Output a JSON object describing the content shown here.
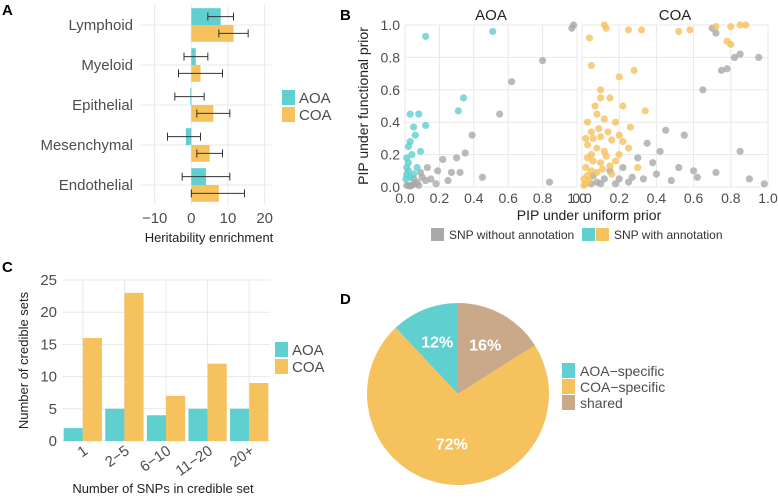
{
  "colors": {
    "aoa": "#5fcfcf",
    "coa": "#f5c25e",
    "shared": "#c9a98a",
    "grey": "#a9a9a9",
    "grid": "#e8e8e8",
    "text": "#4d4d4d"
  },
  "panels": {
    "a": {
      "label": "A",
      "legend": {
        "items": [
          {
            "name": "AOA",
            "color": "#5fcfcf"
          },
          {
            "name": "COA",
            "color": "#f5c25e"
          }
        ]
      }
    },
    "b": {
      "label": "B",
      "legend": {
        "items": [
          {
            "name": "SNP without annotation",
            "colors": [
              "#a9a9a9"
            ]
          },
          {
            "name": "SNP with annotation",
            "colors": [
              "#5fcfcf",
              "#f5c25e"
            ]
          }
        ]
      }
    },
    "c": {
      "label": "C",
      "legend": {
        "items": [
          {
            "name": "AOA",
            "color": "#5fcfcf"
          },
          {
            "name": "COA",
            "color": "#f5c25e"
          }
        ]
      }
    },
    "d": {
      "label": "D",
      "legend": {
        "items": [
          {
            "name": "AOA−specific",
            "color": "#5fcfcf"
          },
          {
            "name": "COA−specific",
            "color": "#f5c25e"
          },
          {
            "name": "shared",
            "color": "#c9a98a"
          }
        ]
      }
    }
  },
  "chart_data": [
    {
      "panel": "A",
      "type": "bar",
      "orientation": "horizontal",
      "categories": [
        "Lymphoid",
        "Myeloid",
        "Epithelial",
        "Mesenchymal",
        "Endothelial"
      ],
      "series": [
        {
          "name": "AOA",
          "values": [
            8,
            1.2,
            -0.3,
            -1.5,
            4
          ],
          "err_low": [
            4.5,
            -2,
            -4.5,
            -6.5,
            -2.5
          ],
          "err_high": [
            11.5,
            4.5,
            3.5,
            2.5,
            10.5
          ]
        },
        {
          "name": "COA",
          "values": [
            11.5,
            2.5,
            6,
            5,
            7.5
          ],
          "err_low": [
            7.5,
            -3.5,
            1.5,
            1.5,
            0
          ],
          "err_high": [
            15.5,
            8.5,
            10.5,
            8.5,
            14.5
          ]
        }
      ],
      "xlabel": "Heritability enrichment",
      "xlim": [
        -14,
        22
      ],
      "xticks": [
        "−10",
        "0",
        "10",
        "20"
      ],
      "xtick_values": [
        -10,
        0,
        10,
        20
      ]
    },
    {
      "panel": "B",
      "type": "scatter",
      "facets": [
        "AOA",
        "COA"
      ],
      "xlabel": "PIP under uniform prior",
      "ylabel": "PIP under functional prior",
      "xlim": [
        0,
        1
      ],
      "ylim": [
        0,
        1
      ],
      "ticks": [
        "0.0",
        "0.2",
        "0.4",
        "0.6",
        "0.8",
        "1.0"
      ],
      "tick_values": [
        0,
        0.2,
        0.4,
        0.6,
        0.8,
        1.0
      ],
      "series": [
        {
          "name": "SNP without annotation",
          "facet": "AOA",
          "points": [
            [
              0.98,
              1.0
            ],
            [
              0.97,
              0.98
            ],
            [
              0.8,
              0.78
            ],
            [
              0.62,
              0.65
            ],
            [
              0.55,
              0.45
            ],
            [
              0.39,
              0.32
            ],
            [
              0.35,
              0.21
            ],
            [
              0.3,
              0.18
            ],
            [
              0.45,
              0.06
            ],
            [
              0.84,
              0.03
            ],
            [
              0.13,
              0.12
            ],
            [
              0.22,
              0.17
            ],
            [
              0.19,
              0.1
            ],
            [
              0.1,
              0.06
            ],
            [
              0.15,
              0.05
            ],
            [
              0.27,
              0.09
            ],
            [
              0.06,
              0.02
            ],
            [
              0.08,
              0.01
            ],
            [
              0.04,
              0.01
            ],
            [
              0.03,
              0.005
            ],
            [
              0.02,
              0.01
            ],
            [
              0.12,
              0.04
            ],
            [
              0.18,
              0.02
            ],
            [
              0.25,
              0.04
            ],
            [
              0.32,
              0.09
            ],
            [
              0.09,
              0.09
            ],
            [
              0.05,
              0.05
            ],
            [
              0.01,
              0.01
            ],
            [
              0.07,
              0.03
            ]
          ]
        },
        {
          "name": "SNP with annotation",
          "facet": "AOA",
          "points": [
            [
              0.51,
              0.96
            ],
            [
              0.12,
              0.93
            ],
            [
              0.34,
              0.55
            ],
            [
              0.31,
              0.47
            ],
            [
              0.08,
              0.45
            ],
            [
              0.03,
              0.45
            ],
            [
              0.12,
              0.38
            ],
            [
              0.05,
              0.37
            ],
            [
              0.06,
              0.32
            ],
            [
              0.03,
              0.28
            ],
            [
              0.02,
              0.25
            ],
            [
              0.09,
              0.22
            ],
            [
              0.04,
              0.2
            ],
            [
              0.01,
              0.18
            ],
            [
              0.02,
              0.15
            ],
            [
              0.01,
              0.12
            ],
            [
              0.02,
              0.1
            ],
            [
              0.01,
              0.08
            ],
            [
              0.005,
              0.05
            ],
            [
              0.03,
              0.06
            ],
            [
              0.05,
              0.08
            ],
            [
              0.07,
              0.12
            ]
          ]
        },
        {
          "name": "SNP without annotation",
          "facet": "COA",
          "points": [
            [
              0.7,
              0.98
            ],
            [
              0.72,
              0.95
            ],
            [
              0.85,
              0.82
            ],
            [
              0.82,
              0.8
            ],
            [
              0.95,
              0.8
            ],
            [
              0.78,
              0.73
            ],
            [
              0.75,
              0.72
            ],
            [
              0.65,
              0.6
            ],
            [
              0.85,
              0.22
            ],
            [
              0.9,
              0.05
            ],
            [
              0.98,
              0.02
            ],
            [
              0.55,
              0.32
            ],
            [
              0.45,
              0.35
            ],
            [
              0.52,
              0.12
            ],
            [
              0.38,
              0.15
            ],
            [
              0.4,
              0.08
            ],
            [
              0.6,
              0.1
            ],
            [
              0.42,
              0.22
            ],
            [
              0.3,
              0.18
            ],
            [
              0.27,
              0.06
            ],
            [
              0.2,
              0.05
            ],
            [
              0.15,
              0.1
            ],
            [
              0.12,
              0.05
            ],
            [
              0.08,
              0.03
            ],
            [
              0.05,
              0.02
            ],
            [
              0.1,
              0.02
            ],
            [
              0.18,
              0.02
            ],
            [
              0.25,
              0.03
            ],
            [
              0.33,
              0.05
            ],
            [
              0.48,
              0.04
            ],
            [
              0.62,
              0.06
            ],
            [
              0.72,
              0.09
            ],
            [
              0.35,
              0.27
            ],
            [
              0.22,
              0.12
            ],
            [
              0.06,
              0.07
            ]
          ]
        },
        {
          "name": "SNP with annotation",
          "facet": "COA",
          "points": [
            [
              0.12,
              1.0
            ],
            [
              0.13,
              0.98
            ],
            [
              0.25,
              0.97
            ],
            [
              0.32,
              0.97
            ],
            [
              0.52,
              0.96
            ],
            [
              0.58,
              0.97
            ],
            [
              0.72,
              0.99
            ],
            [
              0.8,
              0.99
            ],
            [
              0.85,
              1.0
            ],
            [
              0.88,
              1.0
            ],
            [
              0.78,
              0.9
            ],
            [
              0.8,
              0.88
            ],
            [
              0.04,
              0.92
            ],
            [
              0.05,
              0.75
            ],
            [
              0.28,
              0.72
            ],
            [
              0.2,
              0.68
            ],
            [
              0.1,
              0.6
            ],
            [
              0.15,
              0.55
            ],
            [
              0.22,
              0.5
            ],
            [
              0.34,
              0.47
            ],
            [
              0.08,
              0.45
            ],
            [
              0.12,
              0.42
            ],
            [
              0.18,
              0.4
            ],
            [
              0.26,
              0.37
            ],
            [
              0.05,
              0.34
            ],
            [
              0.1,
              0.31
            ],
            [
              0.16,
              0.29
            ],
            [
              0.22,
              0.28
            ],
            [
              0.03,
              0.26
            ],
            [
              0.08,
              0.24
            ],
            [
              0.12,
              0.22
            ],
            [
              0.2,
              0.2
            ],
            [
              0.03,
              0.18
            ],
            [
              0.06,
              0.16
            ],
            [
              0.1,
              0.15
            ],
            [
              0.15,
              0.13
            ],
            [
              0.02,
              0.12
            ],
            [
              0.05,
              0.1
            ],
            [
              0.08,
              0.09
            ],
            [
              0.03,
              0.07
            ],
            [
              0.01,
              0.05
            ],
            [
              0.04,
              0.04
            ],
            [
              0.02,
              0.02
            ],
            [
              0.01,
              0.01
            ],
            [
              0.06,
              0.3
            ],
            [
              0.14,
              0.34
            ],
            [
              0.09,
              0.36
            ],
            [
              0.05,
              0.2
            ],
            [
              0.18,
              0.16
            ],
            [
              0.25,
              0.24
            ],
            [
              0.3,
              0.12
            ],
            [
              0.07,
              0.5
            ],
            [
              0.1,
              0.55
            ],
            [
              0.03,
              0.4
            ],
            [
              0.2,
              0.32
            ],
            [
              0.13,
              0.19
            ],
            [
              0.02,
              0.3
            ],
            [
              0.11,
              0.11
            ],
            [
              0.16,
              0.08
            ]
          ]
        }
      ]
    },
    {
      "panel": "C",
      "type": "bar",
      "categories": [
        "1",
        "2−5",
        "6−10",
        "11−20",
        "20+"
      ],
      "series": [
        {
          "name": "AOA",
          "values": [
            2,
            5,
            4,
            5,
            5
          ]
        },
        {
          "name": "COA",
          "values": [
            16,
            23,
            7,
            12,
            9
          ]
        }
      ],
      "xlabel": "Number of SNPs in credible set",
      "ylabel": "Number of credible sets",
      "ylim": [
        0,
        25
      ],
      "yticks": [
        "0",
        "5",
        "10",
        "15",
        "20",
        "25"
      ],
      "ytick_values": [
        0,
        5,
        10,
        15,
        20,
        25
      ]
    },
    {
      "panel": "D",
      "type": "pie",
      "labels": [
        "AOA−specific",
        "COA−specific",
        "shared"
      ],
      "values": [
        12,
        72,
        16
      ],
      "value_labels": [
        "12%",
        "72%",
        "16%"
      ],
      "colors": [
        "#5fcfcf",
        "#f5c25e",
        "#c9a98a"
      ]
    }
  ]
}
